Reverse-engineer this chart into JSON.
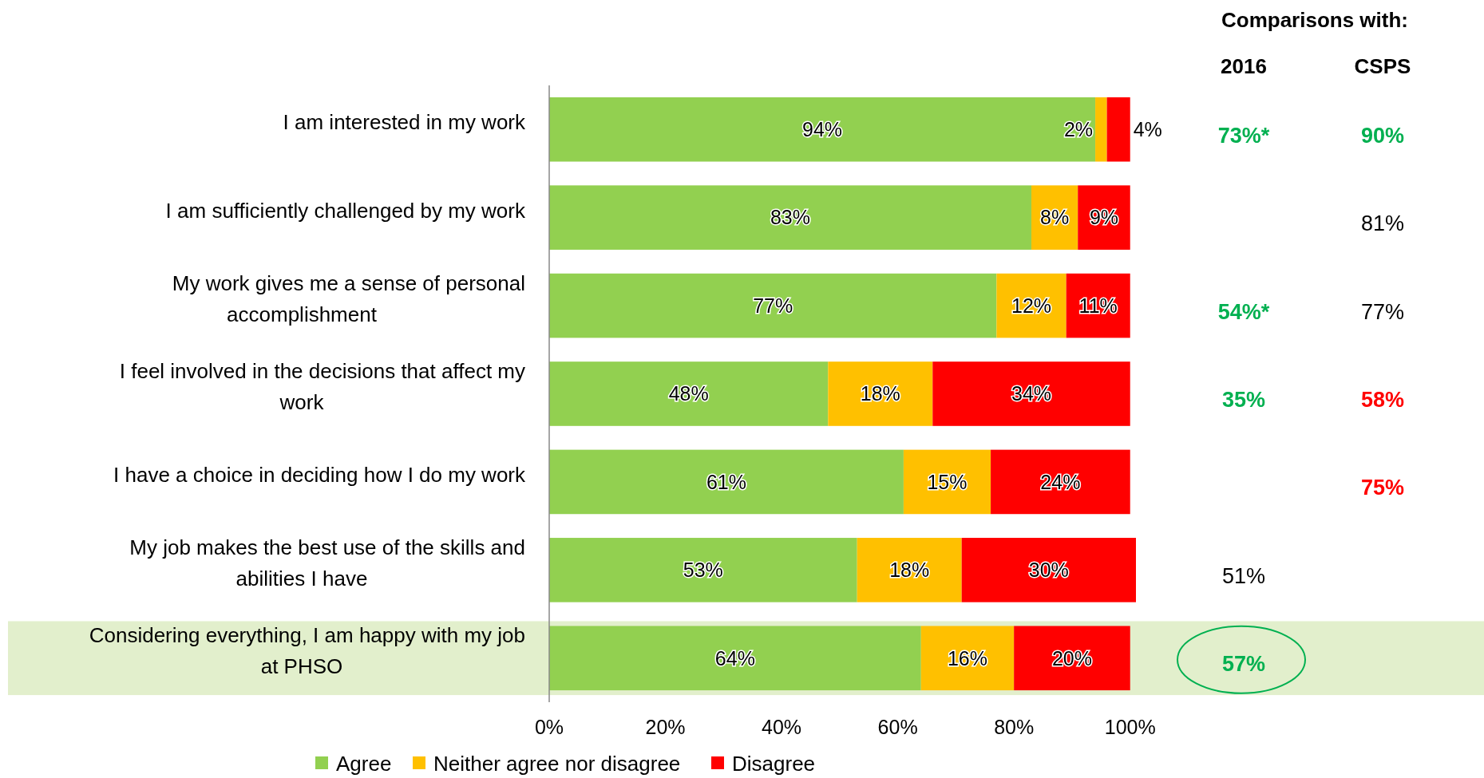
{
  "chart_data": [
    {
      "type": "bar",
      "orientation": "horizontal",
      "stacked": true,
      "legend": "bottom",
      "grid": false,
      "categories": [
        "I am interested in my work",
        "I am sufficiently challenged by my work",
        "My work gives me a sense of personal accomplishment",
        "I feel involved in the decisions that affect my work",
        "I have a choice in deciding how I do my work",
        "My job makes the best use of the skills and abilities I have",
        "Considering everything, I am happy with my job at PHSO"
      ],
      "series": [
        {
          "name": "Agree",
          "color": "#92d050",
          "values": [
            94,
            83,
            77,
            48,
            61,
            53,
            64
          ],
          "value_labels": [
            "94%",
            "83%",
            "77%",
            "48%",
            "61%",
            "53%",
            "64%"
          ]
        },
        {
          "name": "Neither agree nor disagree",
          "color": "#ffc000",
          "values": [
            2,
            8,
            12,
            18,
            15,
            18,
            16
          ],
          "value_labels": [
            "2%",
            "8%",
            "12%",
            "18%",
            "15%",
            "18%",
            "16%"
          ]
        },
        {
          "name": "Disagree",
          "color": "#ff0000",
          "values": [
            4,
            9,
            11,
            34,
            24,
            30,
            20
          ],
          "value_labels": [
            "4%",
            "9%",
            "11%",
            "34%",
            "24%",
            "30%",
            "20%"
          ]
        }
      ],
      "xlim": [
        0,
        101
      ],
      "xticks": [
        {
          "value": 0,
          "label": "0%"
        },
        {
          "value": 20,
          "label": "20%"
        },
        {
          "value": 40,
          "label": "40%"
        },
        {
          "value": 60,
          "label": "60%"
        },
        {
          "value": 80,
          "label": "80%"
        },
        {
          "value": 100,
          "label": "100%"
        }
      ],
      "bands": [
        {
          "axis": "y",
          "from": "Considering everything, I am happy with my job at PHSO",
          "to": "Considering everything, I am happy with my job at PHSO",
          "color": "#e2efcc"
        }
      ]
    },
    {
      "type": "other",
      "title": "Comparisons with:",
      "categories": [
        "2016",
        "CSPS"
      ],
      "cell_labels": [
        [
          "73%*",
          "90%"
        ],
        [
          null,
          "81%"
        ],
        [
          "54%*",
          "77%"
        ],
        [
          "35%",
          "58%"
        ],
        [
          null,
          "75%"
        ],
        [
          "51%",
          null
        ],
        [
          "57%",
          null
        ]
      ],
      "colors": [
        [
          "#00b050",
          "#00b050"
        ],
        [
          null,
          "#000000"
        ],
        [
          "#00b050",
          "#000000"
        ],
        [
          "#00b050",
          "#ff0000"
        ],
        [
          null,
          "#ff0000"
        ],
        [
          "#000000",
          null
        ],
        [
          "#00b050",
          null
        ]
      ]
    }
  ]
}
